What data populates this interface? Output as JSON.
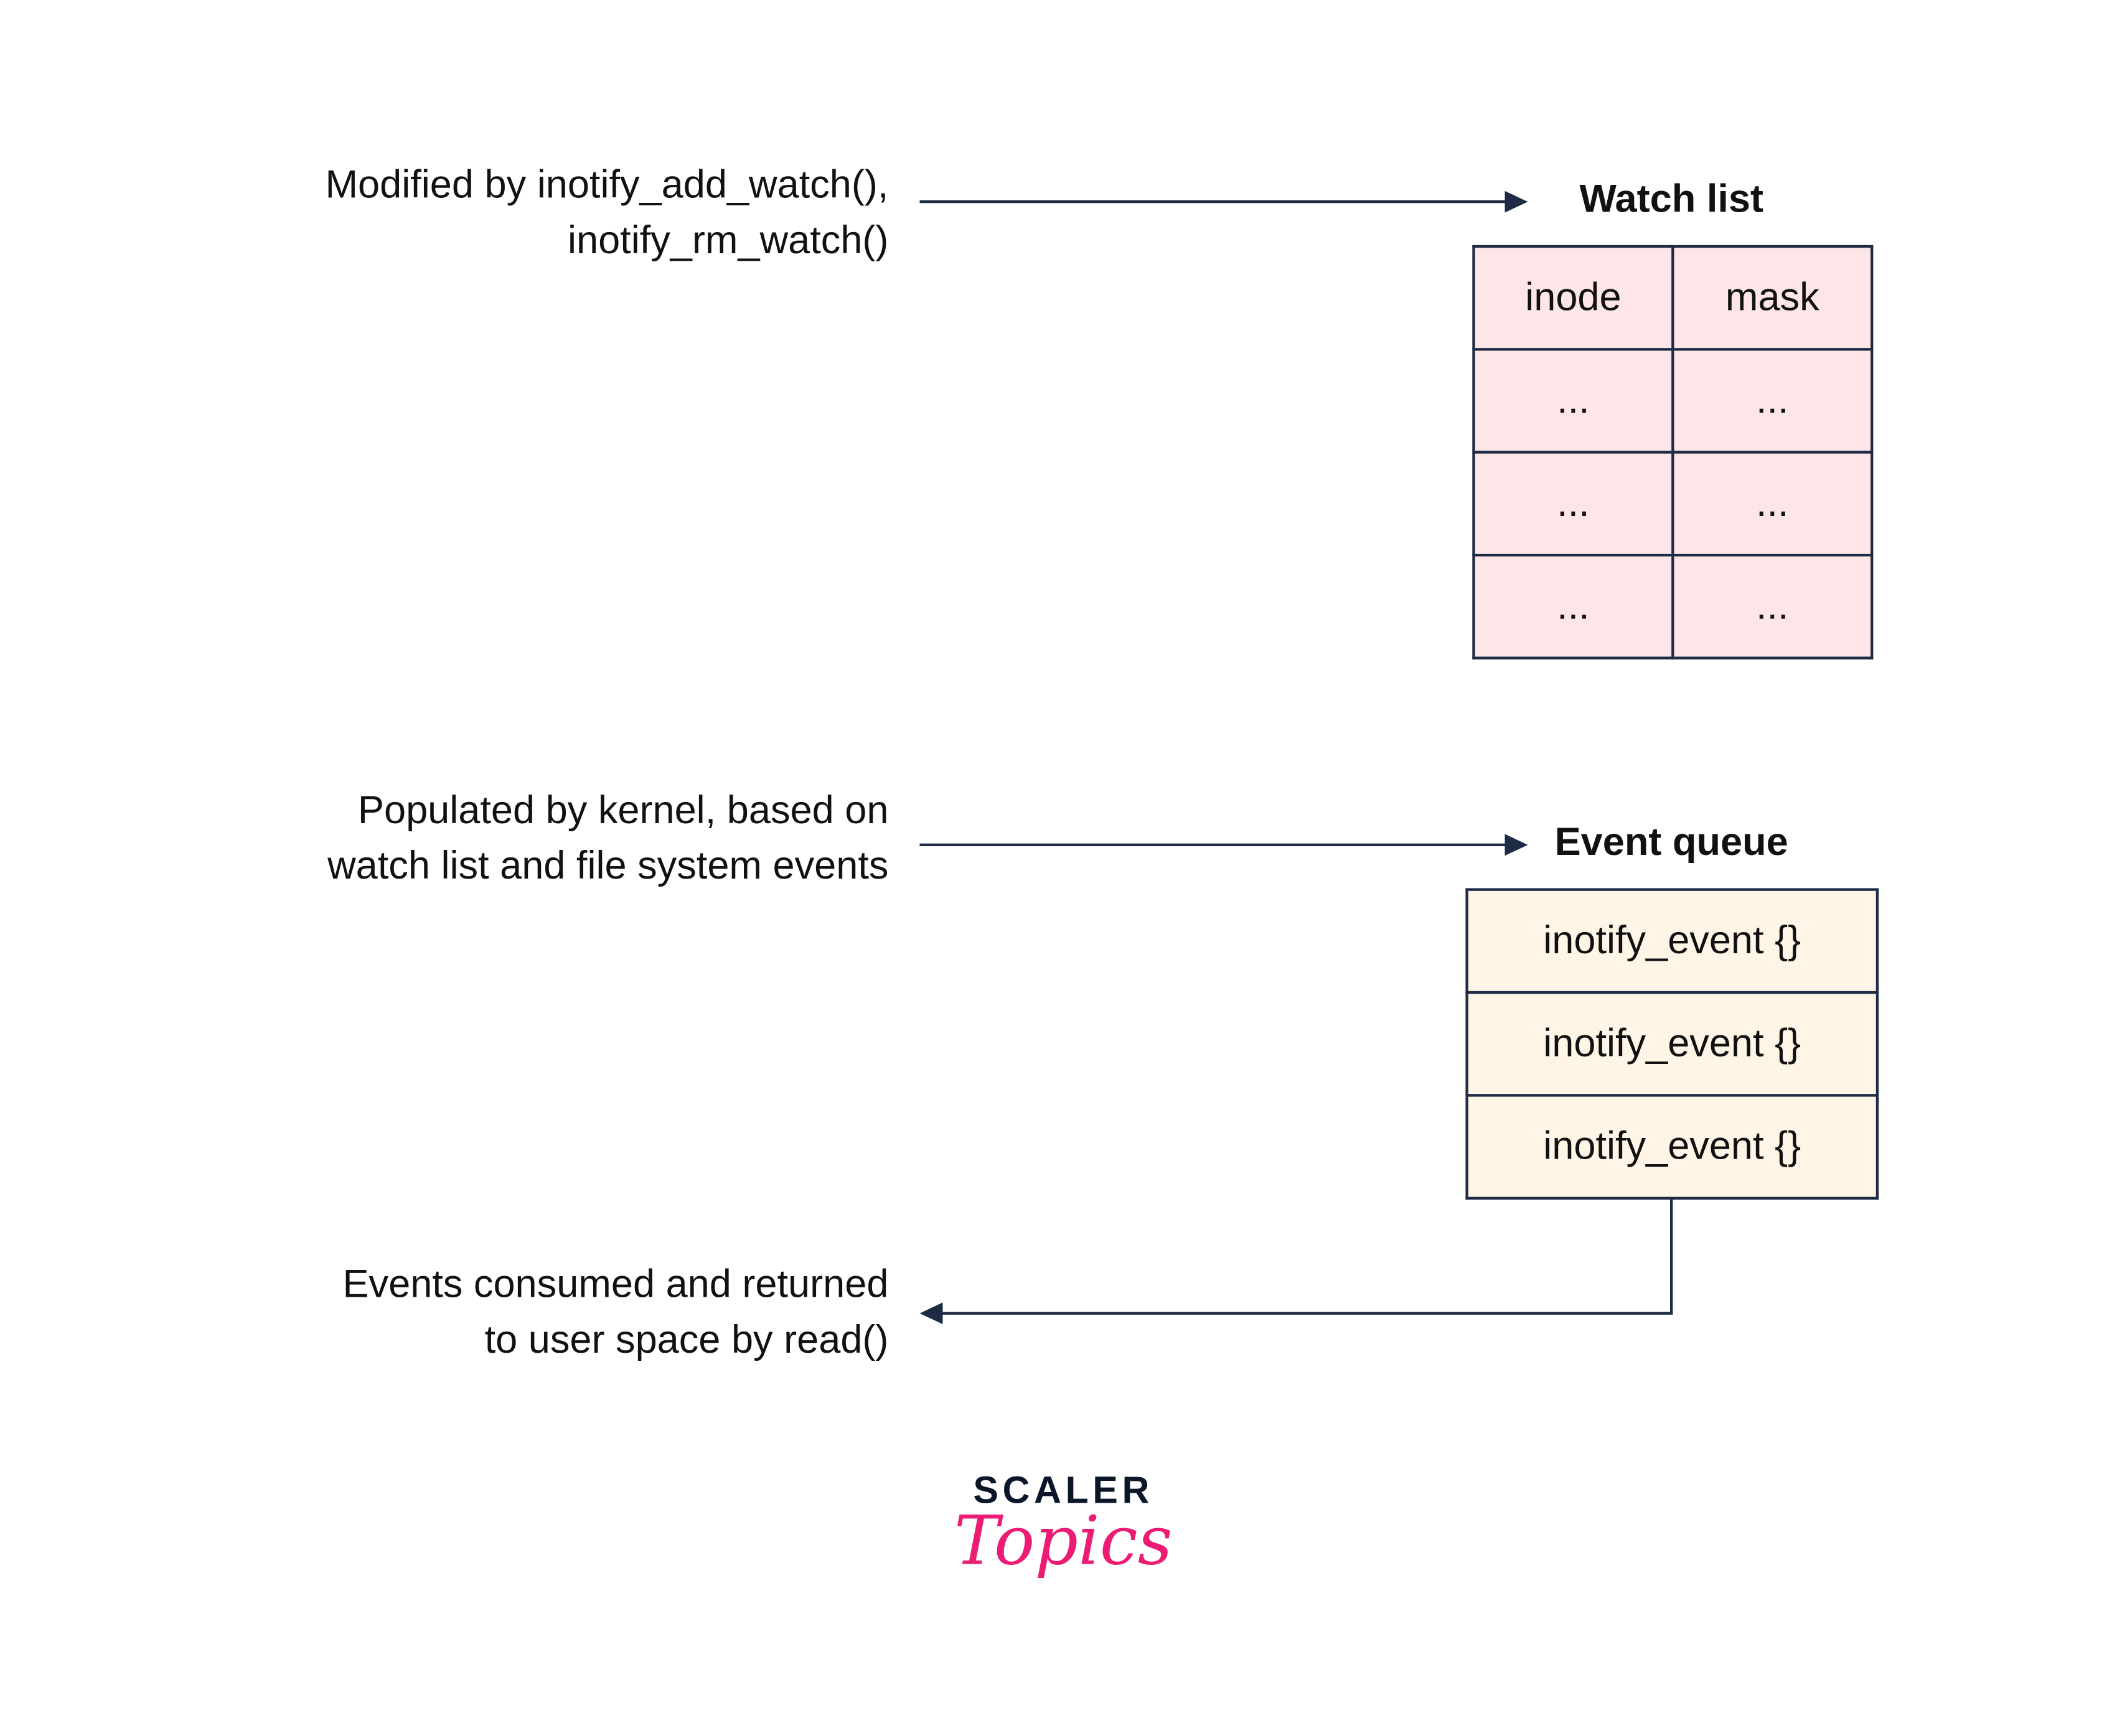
{
  "labels": {
    "watch_modifier": [
      "Modified by inotify_add_watch(),",
      "inotify_rm_watch()"
    ],
    "queue_populator": [
      "Populated by kernel, based on",
      "watch list and file system events"
    ],
    "consumer": [
      "Events consumed and returned",
      "to user space by read()"
    ]
  },
  "watch_list": {
    "title": "Watch list",
    "headers": [
      "inode",
      "mask"
    ],
    "rows": [
      [
        "...",
        "..."
      ],
      [
        "...",
        "..."
      ],
      [
        "...",
        "..."
      ]
    ]
  },
  "event_queue": {
    "title": "Event queue",
    "items": [
      "inotify_event {}",
      "inotify_event {}",
      "inotify_event {}"
    ]
  },
  "logo": {
    "line1": "SCALER",
    "line2": "Topics"
  },
  "colors": {
    "stroke": "#1E2B45",
    "watch_fill": "#FDE5E8",
    "queue_fill": "#FEF5E7",
    "brand_pink": "#EC1C74",
    "brand_dark": "#0B1628"
  }
}
